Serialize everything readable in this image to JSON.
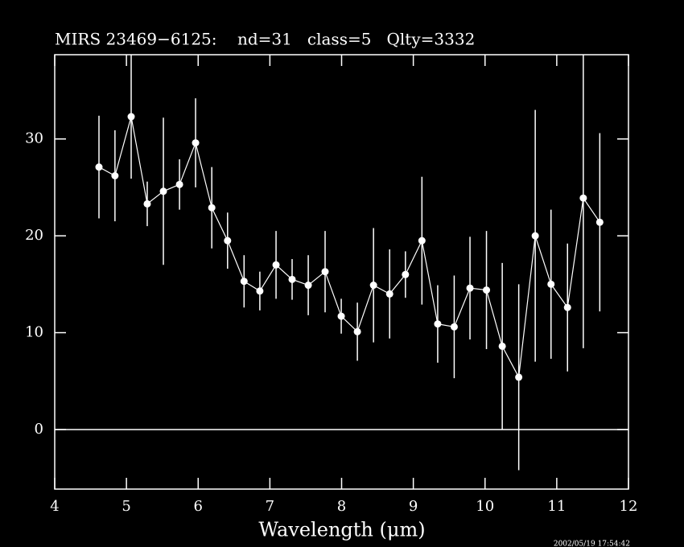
{
  "chart_data": {
    "type": "errorbar",
    "title": "MIRS 23469−6125:    nd=31   class=5   Qlty=3332",
    "x_label": "Wavelength (μm)",
    "timestamp": "2002/05/19 17:54:42",
    "x": [
      4.617,
      4.84,
      5.066,
      5.29,
      5.515,
      5.74,
      5.964,
      6.19,
      6.41,
      6.64,
      6.86,
      7.086,
      7.31,
      7.535,
      7.77,
      7.995,
      8.22,
      8.445,
      8.67,
      8.89,
      9.12,
      9.34,
      9.57,
      9.79,
      10.02,
      10.24,
      10.47,
      10.7,
      10.92,
      11.15,
      11.37,
      11.6
    ],
    "series": [
      {
        "color": "#ffffff",
        "values": [
          27.1,
          26.2,
          32.3,
          23.3,
          24.6,
          25.3,
          29.6,
          22.9,
          19.5,
          15.3,
          14.3,
          17.0,
          15.5,
          14.9,
          16.3,
          11.7,
          10.1,
          14.9,
          14.0,
          16.0,
          19.5,
          10.9,
          10.6,
          14.6,
          14.4,
          8.6,
          5.4,
          20.0,
          15.0,
          12.6,
          23.9,
          21.4
        ],
        "errors": [
          5.3,
          4.7,
          6.4,
          2.3,
          7.6,
          2.6,
          4.6,
          4.2,
          2.9,
          2.7,
          2.0,
          3.5,
          2.1,
          3.1,
          4.2,
          1.8,
          3.0,
          5.9,
          4.6,
          2.4,
          6.6,
          4.0,
          5.3,
          5.3,
          6.1,
          8.6,
          9.6,
          13.0,
          7.7,
          6.6,
          15.5,
          9.2
        ]
      }
    ],
    "xlim": [
      4,
      12
    ],
    "ylim": [
      -6.15,
      38.7
    ],
    "xticks": [
      4,
      5,
      6,
      7,
      8,
      9,
      10,
      11,
      12
    ],
    "yticks": [
      0,
      10,
      20,
      30
    ],
    "zero_line": 0
  }
}
